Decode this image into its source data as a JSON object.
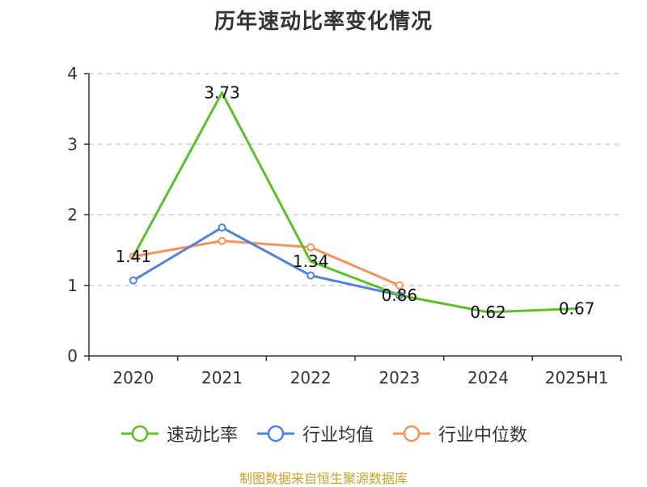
{
  "title": "历年速动比率变化情况",
  "source": "制图数据来自恒生聚源数据库",
  "chart_data": {
    "type": "line",
    "categories": [
      "2020",
      "2021",
      "2022",
      "2023",
      "2024",
      "2025H1"
    ],
    "ylim": [
      0,
      4
    ],
    "yticks": [
      "0",
      "1",
      "2",
      "3",
      "4"
    ],
    "grid": true,
    "legend_position": "bottom",
    "series": [
      {
        "name": "速动比率",
        "color": "#5cc02a",
        "values": [
          1.41,
          3.73,
          1.34,
          0.86,
          0.62,
          0.67
        ],
        "labels": [
          "1.41",
          "3.73",
          "1.34",
          "0.86",
          "0.62",
          "0.67"
        ]
      },
      {
        "name": "行业均值",
        "color": "#4f82d9",
        "values": [
          1.07,
          1.82,
          1.14,
          0.86,
          null,
          null
        ]
      },
      {
        "name": "行业中位数",
        "color": "#f79256",
        "values": [
          1.41,
          1.63,
          1.54,
          1.0,
          null,
          null
        ]
      }
    ]
  }
}
